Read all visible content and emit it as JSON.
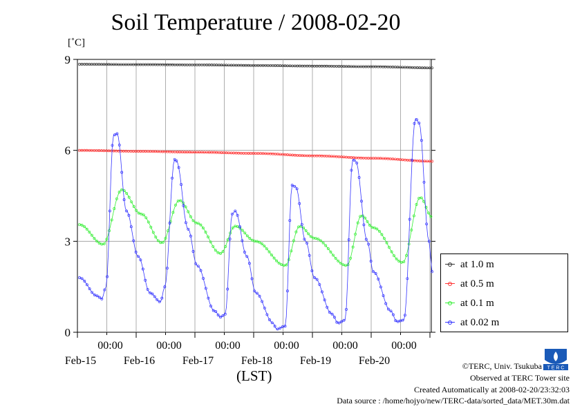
{
  "chart_data": {
    "type": "line",
    "title": "Soil Temperature / 2008-02-20",
    "ylabel": "[˚C]",
    "xlabel": "(LST)",
    "ylim": [
      0,
      9
    ],
    "yticks": [
      0,
      3,
      6,
      9
    ],
    "xticks": [
      {
        "top": "00:00",
        "bottom": "Feb-15",
        "day": 1
      },
      {
        "top": "00:00",
        "bottom": "Feb-16",
        "day": 2
      },
      {
        "top": "00:00",
        "bottom": "Feb-17",
        "day": 3
      },
      {
        "top": "00:00",
        "bottom": "Feb-18",
        "day": 4
      },
      {
        "top": "00:00",
        "bottom": "Feb-19",
        "day": 5
      },
      {
        "top": "00:00",
        "bottom": "Feb-20",
        "day": 6
      }
    ],
    "x_range_days": [
      0,
      6
    ],
    "grid": true,
    "legend_position": "right-bottom",
    "series": [
      {
        "name": "at 1.0 m",
        "color": "#333333",
        "points": [
          [
            0.0,
            8.84
          ],
          [
            1.0,
            8.83
          ],
          [
            2.0,
            8.82
          ],
          [
            3.0,
            8.8
          ],
          [
            4.0,
            8.78
          ],
          [
            5.0,
            8.76
          ],
          [
            6.0,
            8.72
          ]
        ]
      },
      {
        "name": "at 0.5 m",
        "color": "#ff3333",
        "points": [
          [
            0.0,
            6.0
          ],
          [
            1.0,
            5.97
          ],
          [
            2.0,
            5.94
          ],
          [
            3.0,
            5.9
          ],
          [
            4.0,
            5.82
          ],
          [
            5.0,
            5.74
          ],
          [
            6.0,
            5.64
          ]
        ]
      },
      {
        "name": "at 0.1 m",
        "color": "#33ee33",
        "points": [
          [
            0.0,
            3.55
          ],
          [
            0.4,
            2.9
          ],
          [
            0.72,
            4.7
          ],
          [
            1.05,
            3.9
          ],
          [
            1.4,
            2.95
          ],
          [
            1.7,
            4.35
          ],
          [
            2.0,
            3.6
          ],
          [
            2.4,
            2.6
          ],
          [
            2.65,
            3.5
          ],
          [
            3.0,
            3.0
          ],
          [
            3.5,
            2.2
          ],
          [
            3.75,
            3.5
          ],
          [
            4.0,
            3.1
          ],
          [
            4.55,
            2.2
          ],
          [
            4.8,
            3.85
          ],
          [
            5.0,
            3.45
          ],
          [
            5.5,
            2.3
          ],
          [
            5.8,
            4.45
          ],
          [
            6.0,
            3.8
          ]
        ]
      },
      {
        "name": "at 0.02 m",
        "color": "#3333ff",
        "points": [
          [
            0.0,
            1.8
          ],
          [
            0.3,
            1.2
          ],
          [
            0.38,
            1.1
          ],
          [
            0.45,
            1.5
          ],
          [
            0.58,
            6.5
          ],
          [
            0.64,
            6.55
          ],
          [
            0.8,
            4.0
          ],
          [
            1.0,
            2.5
          ],
          [
            1.2,
            1.3
          ],
          [
            1.38,
            1.0
          ],
          [
            1.45,
            1.5
          ],
          [
            1.62,
            5.7
          ],
          [
            1.65,
            5.65
          ],
          [
            1.85,
            3.4
          ],
          [
            2.0,
            2.2
          ],
          [
            2.3,
            0.7
          ],
          [
            2.4,
            0.5
          ],
          [
            2.48,
            0.6
          ],
          [
            2.6,
            3.9
          ],
          [
            2.65,
            4.0
          ],
          [
            2.85,
            2.5
          ],
          [
            3.0,
            1.3
          ],
          [
            3.3,
            0.3
          ],
          [
            3.35,
            0.1
          ],
          [
            3.5,
            0.2
          ],
          [
            3.62,
            4.85
          ],
          [
            3.68,
            4.8
          ],
          [
            3.85,
            3.0
          ],
          [
            4.0,
            1.8
          ],
          [
            4.3,
            0.6
          ],
          [
            4.4,
            0.3
          ],
          [
            4.52,
            0.4
          ],
          [
            4.65,
            5.7
          ],
          [
            4.7,
            5.65
          ],
          [
            4.9,
            3.0
          ],
          [
            5.0,
            2.0
          ],
          [
            5.3,
            0.7
          ],
          [
            5.4,
            0.35
          ],
          [
            5.52,
            0.4
          ],
          [
            5.72,
            7.05
          ],
          [
            5.78,
            6.9
          ],
          [
            5.95,
            3.0
          ],
          [
            6.0,
            2.0
          ]
        ]
      }
    ]
  },
  "credits": {
    "line1": "©TERC, Univ. Tsukuba",
    "line2": "Observed at TERC Tower site",
    "line3": "Created Automatically at 2008-02-20/23:32:03",
    "line4": "Data source : /home/hojyo/new/TERC-data/sorted_data/MET.30m.dat"
  },
  "logo": {
    "label": "T E R C"
  }
}
